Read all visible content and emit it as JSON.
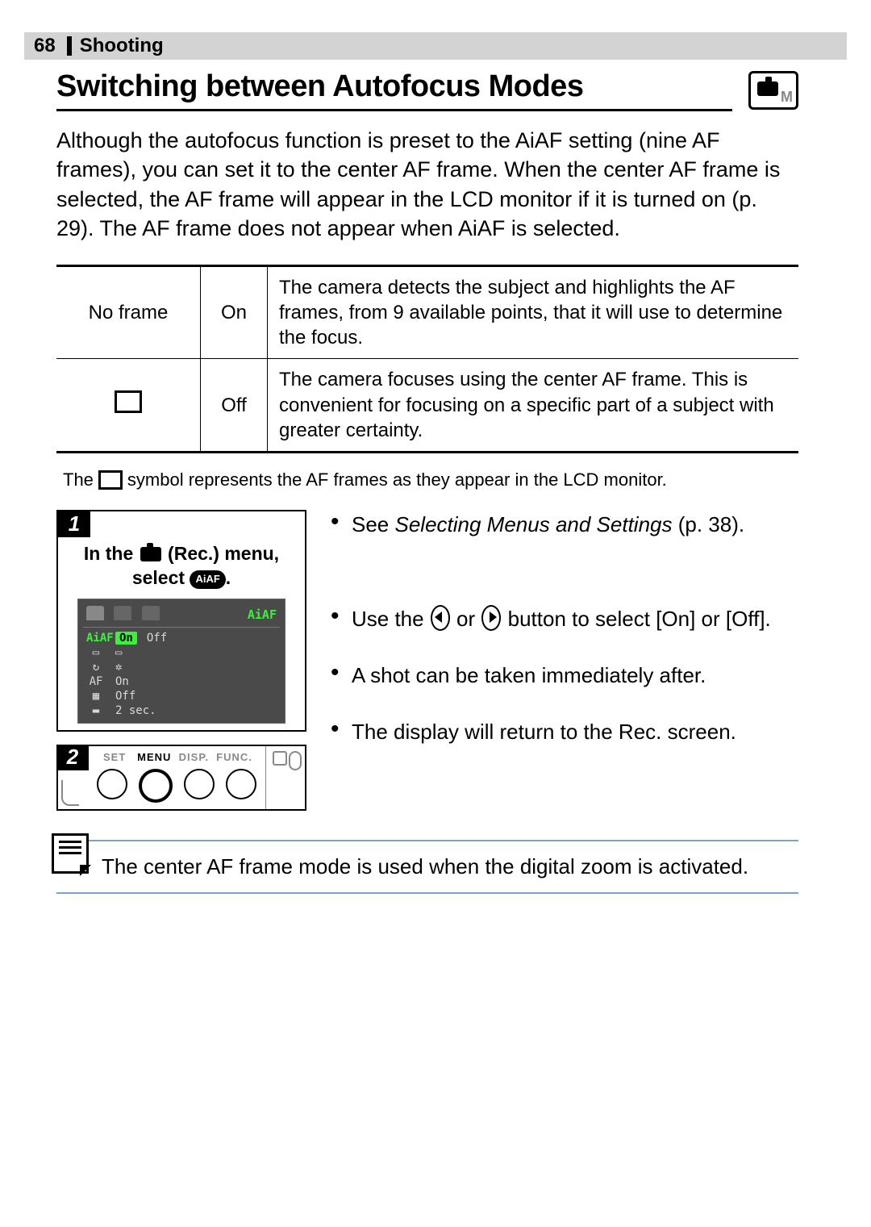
{
  "header": {
    "page_number": "68",
    "section": "Shooting"
  },
  "title": "Switching between Autofocus Modes",
  "mode_badge_letter": "M",
  "intro": "Although the autofocus function is preset to the AiAF setting (nine AF frames), you can set it to the center AF frame. When the center AF frame is selected, the AF frame will appear in the LCD monitor if it is turned on (p. 29). The AF frame does not appear when AiAF is selected.",
  "table": {
    "rows": [
      {
        "frame": "No frame",
        "state": "On",
        "desc": "The camera detects the subject and highlights the AF frames, from 9 available points, that it will use to determine the focus."
      },
      {
        "frame": "SYMBOL",
        "state": "Off",
        "desc": "The camera focuses using the center AF frame. This is convenient for focusing on a specific part of a subject with greater certainty."
      }
    ]
  },
  "caption_pre": "The",
  "caption_post": "symbol represents the AF frames as they appear in the LCD monitor.",
  "step1": {
    "number": "1",
    "line1_pre": "In the",
    "line1_mid": "(Rec.) menu,",
    "line2_pre": "select",
    "aiaf_pill": "AiAF",
    "line2_post": ".",
    "lcd_top_label": "AiAF",
    "lcd_rows": [
      {
        "icon": "AiAF",
        "v1": "On",
        "v2": "Off",
        "highlight": true,
        "aiaf": true
      },
      {
        "icon": "▭",
        "v1": "▭",
        "v2": ""
      },
      {
        "icon": "↻",
        "v1": "✲",
        "v2": ""
      },
      {
        "icon": "AF",
        "v1": "On",
        "v2": ""
      },
      {
        "icon": "▦",
        "v1": "Off",
        "v2": ""
      },
      {
        "icon": "▬",
        "v1": "2 sec.",
        "v2": ""
      }
    ]
  },
  "step2": {
    "number": "2",
    "labels_set": "SET",
    "labels_menu": "MENU",
    "labels_disp": "DISP.",
    "labels_func": "FUNC."
  },
  "bullets": {
    "b1_pre": "See ",
    "b1_ital": "Selecting Menus and Settings",
    "b1_post": " (p. 38).",
    "b2_pre": "Use the ",
    "b2_mid": " or ",
    "b2_post": " button to select [On] or [Off].",
    "b3": "A shot can be taken immediately after.",
    "b4": "The display will return to the Rec. screen."
  },
  "note": "The center AF frame mode is used when the digital zoom is activated.",
  "colors": {
    "header_bg": "#d3d3d3",
    "note_border": "#7aa5c9",
    "lcd_bg": "#4a4a4a",
    "lcd_green": "#3af23a"
  }
}
